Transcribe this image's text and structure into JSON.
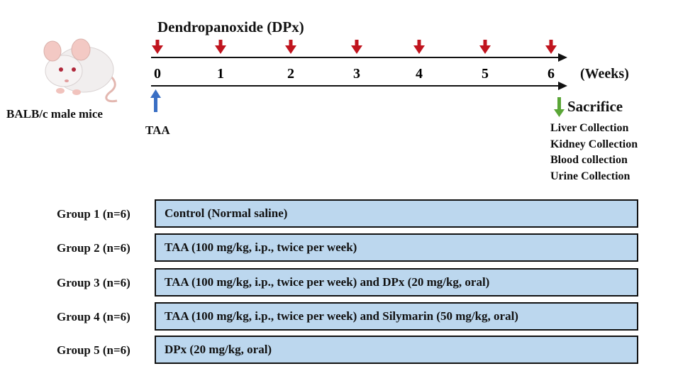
{
  "title": "Dendropanoxide (DPx)",
  "mouse_label": "BALB/c male mice",
  "timeline": {
    "weeks": [
      "0",
      "1",
      "2",
      "3",
      "4",
      "5",
      "6"
    ],
    "unit_label": "(Weeks)",
    "dose_arrow_color": "#c0141e",
    "taa_arrow_color": "#3a6fc4",
    "sacrifice_arrow_color": "#5aa637"
  },
  "taa_label": "TAA",
  "sacrifice": {
    "label": "Sacrifice",
    "items": [
      "Liver Collection",
      "Kidney Collection",
      "Blood collection",
      "Urine Collection"
    ]
  },
  "groups": [
    {
      "label": "Group 1 (n=6)",
      "treatment": "Control (Normal saline)"
    },
    {
      "label": "Group 2 (n=6)",
      "treatment": "TAA (100 mg/kg, i.p., twice per week)"
    },
    {
      "label": "Group 3 (n=6)",
      "treatment": "TAA (100 mg/kg, i.p., twice per week) and DPx (20 mg/kg, oral)"
    },
    {
      "label": "Group 4 (n=6)",
      "treatment": "TAA (100 mg/kg, i.p., twice per week) and Silymarin (50 mg/kg, oral)"
    },
    {
      "label": "Group 5 (n=6)",
      "treatment": "DPx (20 mg/kg, oral)"
    }
  ],
  "group_box_color": "#bcd7ee"
}
